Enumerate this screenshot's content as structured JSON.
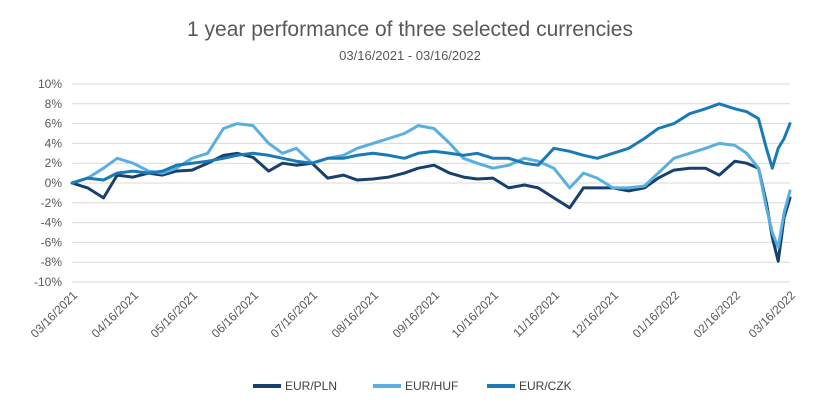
{
  "chart_data": {
    "type": "line",
    "title": "1 year performance of three selected currencies",
    "subtitle": "03/16/2021 - 03/16/2022",
    "xlabel": "",
    "ylabel": "",
    "ylim": [
      -10,
      10
    ],
    "ytick_values": [
      10,
      8,
      6,
      4,
      2,
      0,
      -2,
      -4,
      -6,
      -8,
      -10
    ],
    "ytick_labels": [
      "10%",
      "8%",
      "6%",
      "4%",
      "2%",
      "0%",
      "-2%",
      "-4%",
      "-6%",
      "-8%",
      "-10%"
    ],
    "xtick_labels": [
      "03/16/2021",
      "04/16/2021",
      "05/16/2021",
      "06/16/2021",
      "07/16/2021",
      "08/16/2021",
      "09/16/2021",
      "10/16/2021",
      "11/16/2021",
      "12/16/2021",
      "01/16/2022",
      "02/16/2022",
      "03/16/2022"
    ],
    "grid": "horizontal",
    "legend_position": "bottom",
    "series": [
      {
        "name": "EUR/PLN",
        "color": "#17406d",
        "x": [
          "03/16/2021",
          "03/24/2021",
          "04/01/2021",
          "04/08/2021",
          "04/16/2021",
          "04/24/2021",
          "05/01/2021",
          "05/08/2021",
          "05/16/2021",
          "05/24/2021",
          "06/01/2021",
          "06/08/2021",
          "06/16/2021",
          "06/24/2021",
          "07/01/2021",
          "07/08/2021",
          "07/16/2021",
          "07/24/2021",
          "08/01/2021",
          "08/08/2021",
          "08/16/2021",
          "08/24/2021",
          "09/01/2021",
          "09/08/2021",
          "09/16/2021",
          "09/24/2021",
          "10/01/2021",
          "10/08/2021",
          "10/16/2021",
          "10/24/2021",
          "11/01/2021",
          "11/08/2021",
          "11/16/2021",
          "11/24/2021",
          "12/01/2021",
          "12/08/2021",
          "12/16/2021",
          "12/24/2021",
          "01/01/2022",
          "01/08/2022",
          "01/16/2022",
          "01/24/2022",
          "02/01/2022",
          "02/08/2022",
          "02/16/2022",
          "02/22/2022",
          "02/28/2022",
          "03/04/2022",
          "03/07/2022",
          "03/10/2022",
          "03/13/2022",
          "03/16/2022"
        ],
        "values": [
          0,
          -0.5,
          -1.5,
          0.8,
          0.6,
          1.0,
          0.8,
          1.2,
          1.3,
          2.0,
          2.8,
          3.0,
          2.6,
          1.2,
          2.0,
          1.8,
          2.0,
          0.5,
          0.8,
          0.3,
          0.4,
          0.6,
          1.0,
          1.5,
          1.8,
          1.0,
          0.6,
          0.4,
          0.5,
          -0.5,
          -0.2,
          -0.5,
          -1.5,
          -2.5,
          -0.5,
          -0.5,
          -0.5,
          -0.8,
          -0.5,
          0.5,
          1.3,
          1.5,
          1.5,
          0.8,
          2.2,
          2.0,
          1.5,
          -2.0,
          -5.5,
          -7.9,
          -3.5,
          -1.5
        ]
      },
      {
        "name": "EUR/HUF",
        "color": "#5aafe0",
        "x": [
          "03/16/2021",
          "03/24/2021",
          "04/01/2021",
          "04/08/2021",
          "04/16/2021",
          "04/24/2021",
          "05/01/2021",
          "05/08/2021",
          "05/16/2021",
          "05/24/2021",
          "06/01/2021",
          "06/08/2021",
          "06/16/2021",
          "06/24/2021",
          "07/01/2021",
          "07/08/2021",
          "07/16/2021",
          "07/24/2021",
          "08/01/2021",
          "08/08/2021",
          "08/16/2021",
          "08/24/2021",
          "09/01/2021",
          "09/08/2021",
          "09/16/2021",
          "09/24/2021",
          "10/01/2021",
          "10/08/2021",
          "10/16/2021",
          "10/24/2021",
          "11/01/2021",
          "11/08/2021",
          "11/16/2021",
          "11/24/2021",
          "12/01/2021",
          "12/08/2021",
          "12/16/2021",
          "12/24/2021",
          "01/01/2022",
          "01/08/2022",
          "01/16/2022",
          "01/24/2022",
          "02/01/2022",
          "02/08/2022",
          "02/16/2022",
          "02/22/2022",
          "02/28/2022",
          "03/04/2022",
          "03/07/2022",
          "03/10/2022",
          "03/13/2022",
          "03/16/2022"
        ],
        "values": [
          0,
          0.5,
          1.5,
          2.5,
          2.0,
          1.2,
          1.0,
          1.5,
          2.5,
          3.0,
          5.5,
          6.0,
          5.8,
          4.0,
          3.0,
          3.5,
          2.0,
          2.5,
          2.8,
          3.5,
          4.0,
          4.5,
          5.0,
          5.8,
          5.5,
          4.0,
          2.5,
          2.0,
          1.5,
          1.8,
          2.5,
          2.2,
          1.5,
          -0.5,
          1.0,
          0.5,
          -0.5,
          -0.5,
          -0.3,
          1.0,
          2.5,
          3.0,
          3.5,
          4.0,
          3.8,
          3.0,
          1.5,
          -2.5,
          -5.0,
          -6.5,
          -3.0,
          -0.8
        ]
      },
      {
        "name": "EUR/CZK",
        "color": "#1a7ab5",
        "x": [
          "03/16/2021",
          "03/24/2021",
          "04/01/2021",
          "04/08/2021",
          "04/16/2021",
          "04/24/2021",
          "05/01/2021",
          "05/08/2021",
          "05/16/2021",
          "05/24/2021",
          "06/01/2021",
          "06/08/2021",
          "06/16/2021",
          "06/24/2021",
          "07/01/2021",
          "07/08/2021",
          "07/16/2021",
          "07/24/2021",
          "08/01/2021",
          "08/08/2021",
          "08/16/2021",
          "08/24/2021",
          "09/01/2021",
          "09/08/2021",
          "09/16/2021",
          "09/24/2021",
          "10/01/2021",
          "10/08/2021",
          "10/16/2021",
          "10/24/2021",
          "11/01/2021",
          "11/08/2021",
          "11/16/2021",
          "11/24/2021",
          "12/01/2021",
          "12/08/2021",
          "12/16/2021",
          "12/24/2021",
          "01/01/2022",
          "01/08/2022",
          "01/16/2022",
          "01/24/2022",
          "02/01/2022",
          "02/08/2022",
          "02/16/2022",
          "02/22/2022",
          "02/28/2022",
          "03/04/2022",
          "03/07/2022",
          "03/10/2022",
          "03/13/2022",
          "03/16/2022"
        ],
        "values": [
          0,
          0.5,
          0.3,
          1.0,
          1.2,
          1.0,
          1.2,
          1.8,
          2.0,
          2.2,
          2.5,
          2.8,
          3.0,
          2.8,
          2.5,
          2.2,
          2.0,
          2.5,
          2.5,
          2.8,
          3.0,
          2.8,
          2.5,
          3.0,
          3.2,
          3.0,
          2.8,
          3.0,
          2.5,
          2.5,
          2.0,
          1.8,
          3.5,
          3.2,
          2.8,
          2.5,
          3.0,
          3.5,
          4.5,
          5.5,
          6.0,
          7.0,
          7.5,
          8.0,
          7.5,
          7.2,
          6.5,
          3.5,
          1.5,
          3.5,
          4.5,
          6.0
        ]
      }
    ]
  }
}
